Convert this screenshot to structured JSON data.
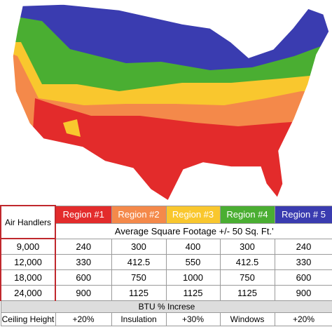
{
  "table": {
    "corner": "Air Handlers",
    "regions": [
      {
        "name": "Region #1",
        "color": "#e32b2b"
      },
      {
        "name": "Region #2",
        "color": "#f4894a"
      },
      {
        "name": "Region #3",
        "color": "#f9c72e"
      },
      {
        "name": "Region #4",
        "color": "#4aae32"
      },
      {
        "name": "Region # 5",
        "color": "#3a3cb0"
      }
    ],
    "subheader": "Average Square Footage +/- 50 Sq. Ft.'",
    "rows": [
      [
        "9,000",
        "240",
        "300",
        "400",
        "300",
        "240"
      ],
      [
        "12,000",
        "330",
        "412.5",
        "550",
        "412.5",
        "330"
      ],
      [
        "18,000",
        "600",
        "750",
        "1000",
        "750",
        "600"
      ],
      [
        "24,000",
        "900",
        "1125",
        "1125",
        "1125",
        "900"
      ]
    ],
    "section": "BTU % Increse",
    "footer": [
      "Ceiling Height",
      "+20%",
      "Insulation",
      "+30%",
      "Windows",
      "+20%"
    ]
  }
}
